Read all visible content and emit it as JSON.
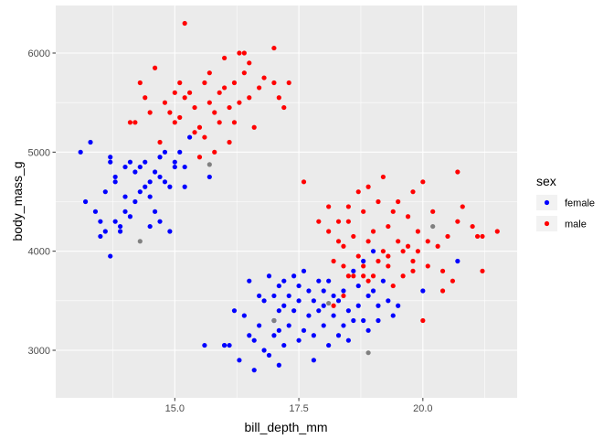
{
  "chart_data": {
    "type": "scatter",
    "xlabel": "bill_depth_mm",
    "ylabel": "body_mass_g",
    "xlim": [
      12.6,
      21.9
    ],
    "ylim": [
      2520,
      6480
    ],
    "x_ticks": [
      {
        "value": 15,
        "label": "15.0"
      },
      {
        "value": 17.5,
        "label": "17.5"
      },
      {
        "value": 20,
        "label": "20.0"
      }
    ],
    "y_ticks": [
      {
        "value": 3000,
        "label": "3000"
      },
      {
        "value": 4000,
        "label": "4000"
      },
      {
        "value": 5000,
        "label": "5000"
      },
      {
        "value": 6000,
        "label": "6000"
      }
    ],
    "grid": true,
    "legend": {
      "title": "sex",
      "placement": "right",
      "entries": [
        {
          "label": "female",
          "color": "#0000ff"
        },
        {
          "label": "male",
          "color": "#ff0000"
        }
      ]
    },
    "series": [
      {
        "name": "female",
        "color": "#0000ff",
        "points": [
          [
            13.1,
            5000
          ],
          [
            13.2,
            4500
          ],
          [
            13.3,
            5100
          ],
          [
            13.4,
            4400
          ],
          [
            13.5,
            4150
          ],
          [
            13.5,
            4300
          ],
          [
            13.6,
            4600
          ],
          [
            13.6,
            4200
          ],
          [
            13.7,
            4900
          ],
          [
            13.7,
            4950
          ],
          [
            13.7,
            3950
          ],
          [
            13.8,
            4300
          ],
          [
            13.8,
            4700
          ],
          [
            13.8,
            4750
          ],
          [
            13.9,
            4200
          ],
          [
            13.9,
            4250
          ],
          [
            14.0,
            4400
          ],
          [
            14.0,
            4550
          ],
          [
            14.0,
            4850
          ],
          [
            14.1,
            4900
          ],
          [
            14.1,
            4350
          ],
          [
            14.2,
            4800
          ],
          [
            14.2,
            4500
          ],
          [
            14.3,
            4600
          ],
          [
            14.3,
            4850
          ],
          [
            14.4,
            4650
          ],
          [
            14.4,
            4900
          ],
          [
            14.5,
            4700
          ],
          [
            14.5,
            4250
          ],
          [
            14.5,
            4550
          ],
          [
            14.6,
            4800
          ],
          [
            14.6,
            4400
          ],
          [
            14.7,
            4750
          ],
          [
            14.7,
            4300
          ],
          [
            14.7,
            4950
          ],
          [
            14.8,
            4700
          ],
          [
            14.8,
            5000
          ],
          [
            14.9,
            4650
          ],
          [
            14.9,
            4200
          ],
          [
            15.0,
            4850
          ],
          [
            15.0,
            4900
          ],
          [
            15.1,
            5000
          ],
          [
            15.2,
            4850
          ],
          [
            15.2,
            4650
          ],
          [
            15.3,
            5150
          ],
          [
            15.7,
            4750
          ],
          [
            15.6,
            3050
          ],
          [
            16.0,
            3050
          ],
          [
            16.0,
            3050
          ],
          [
            16.1,
            3050
          ],
          [
            16.2,
            3400
          ],
          [
            16.3,
            2900
          ],
          [
            16.4,
            3350
          ],
          [
            16.5,
            3700
          ],
          [
            16.5,
            3150
          ],
          [
            16.6,
            2800
          ],
          [
            16.6,
            3100
          ],
          [
            16.7,
            3250
          ],
          [
            16.7,
            3550
          ],
          [
            16.8,
            3000
          ],
          [
            16.8,
            3500
          ],
          [
            16.9,
            3750
          ],
          [
            16.9,
            2950
          ],
          [
            17.0,
            3300
          ],
          [
            17.0,
            3550
          ],
          [
            17.0,
            3150
          ],
          [
            17.1,
            3650
          ],
          [
            17.1,
            2850
          ],
          [
            17.1,
            3400
          ],
          [
            17.1,
            3200
          ],
          [
            17.2,
            3450
          ],
          [
            17.2,
            3700
          ],
          [
            17.2,
            3050
          ],
          [
            17.3,
            3250
          ],
          [
            17.3,
            3550
          ],
          [
            17.4,
            3750
          ],
          [
            17.4,
            3400
          ],
          [
            17.5,
            3650
          ],
          [
            17.5,
            3100
          ],
          [
            17.5,
            3500
          ],
          [
            17.6,
            3200
          ],
          [
            17.6,
            3800
          ],
          [
            17.7,
            3350
          ],
          [
            17.7,
            3600
          ],
          [
            17.8,
            2900
          ],
          [
            17.8,
            3500
          ],
          [
            17.8,
            3150
          ],
          [
            17.9,
            3700
          ],
          [
            17.9,
            3400
          ],
          [
            18.0,
            3450
          ],
          [
            18.0,
            3250
          ],
          [
            18.0,
            3600
          ],
          [
            18.1,
            3700
          ],
          [
            18.1,
            3050
          ],
          [
            18.2,
            3550
          ],
          [
            18.2,
            3350
          ],
          [
            18.3,
            3150
          ],
          [
            18.3,
            3500
          ],
          [
            18.4,
            3250
          ],
          [
            18.4,
            3600
          ],
          [
            18.5,
            3400
          ],
          [
            18.5,
            3100
          ],
          [
            18.6,
            3800
          ],
          [
            18.6,
            3300
          ],
          [
            18.7,
            3450
          ],
          [
            18.7,
            3650
          ],
          [
            18.8,
            3300
          ],
          [
            18.8,
            3900
          ],
          [
            18.9,
            3550
          ],
          [
            18.9,
            3200
          ],
          [
            19.0,
            4000
          ],
          [
            19.0,
            3600
          ],
          [
            19.1,
            3300
          ],
          [
            19.1,
            3450
          ],
          [
            19.2,
            3700
          ],
          [
            19.3,
            3500
          ],
          [
            19.4,
            3350
          ],
          [
            19.5,
            3450
          ],
          [
            20.0,
            3600
          ],
          [
            20.7,
            3900
          ]
        ]
      },
      {
        "name": "male",
        "color": "#ff0000",
        "points": [
          [
            14.1,
            5300
          ],
          [
            14.2,
            5300
          ],
          [
            14.3,
            5700
          ],
          [
            14.4,
            5550
          ],
          [
            14.5,
            5400
          ],
          [
            14.6,
            5850
          ],
          [
            14.7,
            5100
          ],
          [
            14.8,
            5500
          ],
          [
            14.9,
            5400
          ],
          [
            15.0,
            5300
          ],
          [
            15.0,
            5600
          ],
          [
            15.1,
            5700
          ],
          [
            15.1,
            5350
          ],
          [
            15.2,
            5550
          ],
          [
            15.2,
            6300
          ],
          [
            15.3,
            5600
          ],
          [
            15.4,
            5200
          ],
          [
            15.4,
            5450
          ],
          [
            15.5,
            5250
          ],
          [
            15.5,
            4950
          ],
          [
            15.6,
            5150
          ],
          [
            15.6,
            5700
          ],
          [
            15.7,
            5500
          ],
          [
            15.7,
            5800
          ],
          [
            15.8,
            5400
          ],
          [
            15.8,
            5000
          ],
          [
            15.9,
            5600
          ],
          [
            15.9,
            5300
          ],
          [
            16.0,
            5650
          ],
          [
            16.0,
            5950
          ],
          [
            16.1,
            5450
          ],
          [
            16.1,
            5100
          ],
          [
            16.2,
            5700
          ],
          [
            16.2,
            5300
          ],
          [
            16.3,
            6000
          ],
          [
            16.3,
            5500
          ],
          [
            16.4,
            5800
          ],
          [
            16.4,
            6000
          ],
          [
            16.5,
            5550
          ],
          [
            16.5,
            5900
          ],
          [
            16.6,
            5250
          ],
          [
            16.7,
            5650
          ],
          [
            16.8,
            5750
          ],
          [
            17.0,
            5700
          ],
          [
            17.0,
            6050
          ],
          [
            17.1,
            5550
          ],
          [
            17.2,
            5450
          ],
          [
            17.3,
            5700
          ],
          [
            17.6,
            4700
          ],
          [
            17.9,
            4300
          ],
          [
            18.1,
            4450
          ],
          [
            18.1,
            4200
          ],
          [
            18.2,
            3900
          ],
          [
            18.3,
            4100
          ],
          [
            18.3,
            4300
          ],
          [
            18.4,
            3850
          ],
          [
            18.4,
            4050
          ],
          [
            18.5,
            4300
          ],
          [
            18.5,
            4450
          ],
          [
            18.6,
            3750
          ],
          [
            18.6,
            4150
          ],
          [
            18.7,
            4600
          ],
          [
            18.7,
            3950
          ],
          [
            18.8,
            4400
          ],
          [
            18.8,
            3850
          ],
          [
            18.9,
            4100
          ],
          [
            18.9,
            4650
          ],
          [
            19.0,
            4200
          ],
          [
            19.0,
            3750
          ],
          [
            19.1,
            4500
          ],
          [
            19.1,
            3900
          ],
          [
            19.2,
            4750
          ],
          [
            19.2,
            4000
          ],
          [
            19.3,
            4250
          ],
          [
            19.3,
            3850
          ],
          [
            19.4,
            4400
          ],
          [
            19.4,
            3650
          ],
          [
            19.5,
            4100
          ],
          [
            19.5,
            4500
          ],
          [
            19.6,
            4000
          ],
          [
            19.6,
            3750
          ],
          [
            19.7,
            4350
          ],
          [
            19.7,
            4050
          ],
          [
            19.8,
            4600
          ],
          [
            19.8,
            3800
          ],
          [
            19.9,
            4200
          ],
          [
            19.9,
            4000
          ],
          [
            20.0,
            4700
          ],
          [
            20.0,
            3300
          ],
          [
            20.1,
            4100
          ],
          [
            20.1,
            3850
          ],
          [
            20.2,
            4400
          ],
          [
            20.3,
            4050
          ],
          [
            20.4,
            3800
          ],
          [
            20.5,
            4150
          ],
          [
            20.6,
            3700
          ],
          [
            20.7,
            4800
          ],
          [
            20.7,
            4300
          ],
          [
            20.8,
            4450
          ],
          [
            21.0,
            4250
          ],
          [
            21.1,
            4150
          ],
          [
            21.2,
            3800
          ],
          [
            21.5,
            4200
          ],
          [
            21.2,
            4150
          ],
          [
            18.5,
            3750
          ],
          [
            18.2,
            3450
          ],
          [
            18.4,
            3550
          ],
          [
            18.8,
            3750
          ],
          [
            18.9,
            3700
          ],
          [
            19.3,
            3950
          ],
          [
            19.8,
            3900
          ],
          [
            20.4,
            3600
          ]
        ]
      },
      {
        "name": "",
        "color": "#808080",
        "points": [
          [
            14.3,
            4100
          ],
          [
            15.7,
            4875
          ],
          [
            17.0,
            3300
          ],
          [
            18.1,
            3475
          ],
          [
            18.9,
            2975
          ],
          [
            20.2,
            4250
          ]
        ]
      }
    ]
  }
}
